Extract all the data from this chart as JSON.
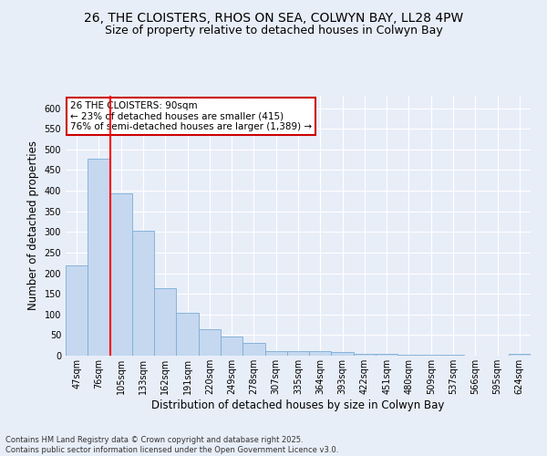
{
  "title1": "26, THE CLOISTERS, RHOS ON SEA, COLWYN BAY, LL28 4PW",
  "title2": "Size of property relative to detached houses in Colwyn Bay",
  "xlabel": "Distribution of detached houses by size in Colwyn Bay",
  "ylabel": "Number of detached properties",
  "categories": [
    "47sqm",
    "76sqm",
    "105sqm",
    "133sqm",
    "162sqm",
    "191sqm",
    "220sqm",
    "249sqm",
    "278sqm",
    "307sqm",
    "335sqm",
    "364sqm",
    "393sqm",
    "422sqm",
    "451sqm",
    "480sqm",
    "509sqm",
    "537sqm",
    "566sqm",
    "595sqm",
    "624sqm"
  ],
  "values": [
    218,
    478,
    394,
    302,
    163,
    105,
    65,
    47,
    30,
    10,
    10,
    10,
    8,
    5,
    5,
    3,
    3,
    2,
    0,
    0,
    4
  ],
  "bar_color": "#c5d8f0",
  "bar_edge_color": "#7aadd4",
  "red_line_x": 1.5,
  "annotation_text": "26 THE CLOISTERS: 90sqm\n← 23% of detached houses are smaller (415)\n76% of semi-detached houses are larger (1,389) →",
  "annotation_box_color": "#ffffff",
  "annotation_box_edge": "#cc0000",
  "ylim": [
    0,
    630
  ],
  "yticks": [
    0,
    50,
    100,
    150,
    200,
    250,
    300,
    350,
    400,
    450,
    500,
    550,
    600
  ],
  "background_color": "#e8eef8",
  "grid_color": "#ffffff",
  "footer": "Contains HM Land Registry data © Crown copyright and database right 2025.\nContains public sector information licensed under the Open Government Licence v3.0.",
  "title_fontsize": 10,
  "subtitle_fontsize": 9,
  "axis_fontsize": 8.5,
  "tick_fontsize": 7,
  "annotation_fontsize": 7.5,
  "footer_fontsize": 6
}
